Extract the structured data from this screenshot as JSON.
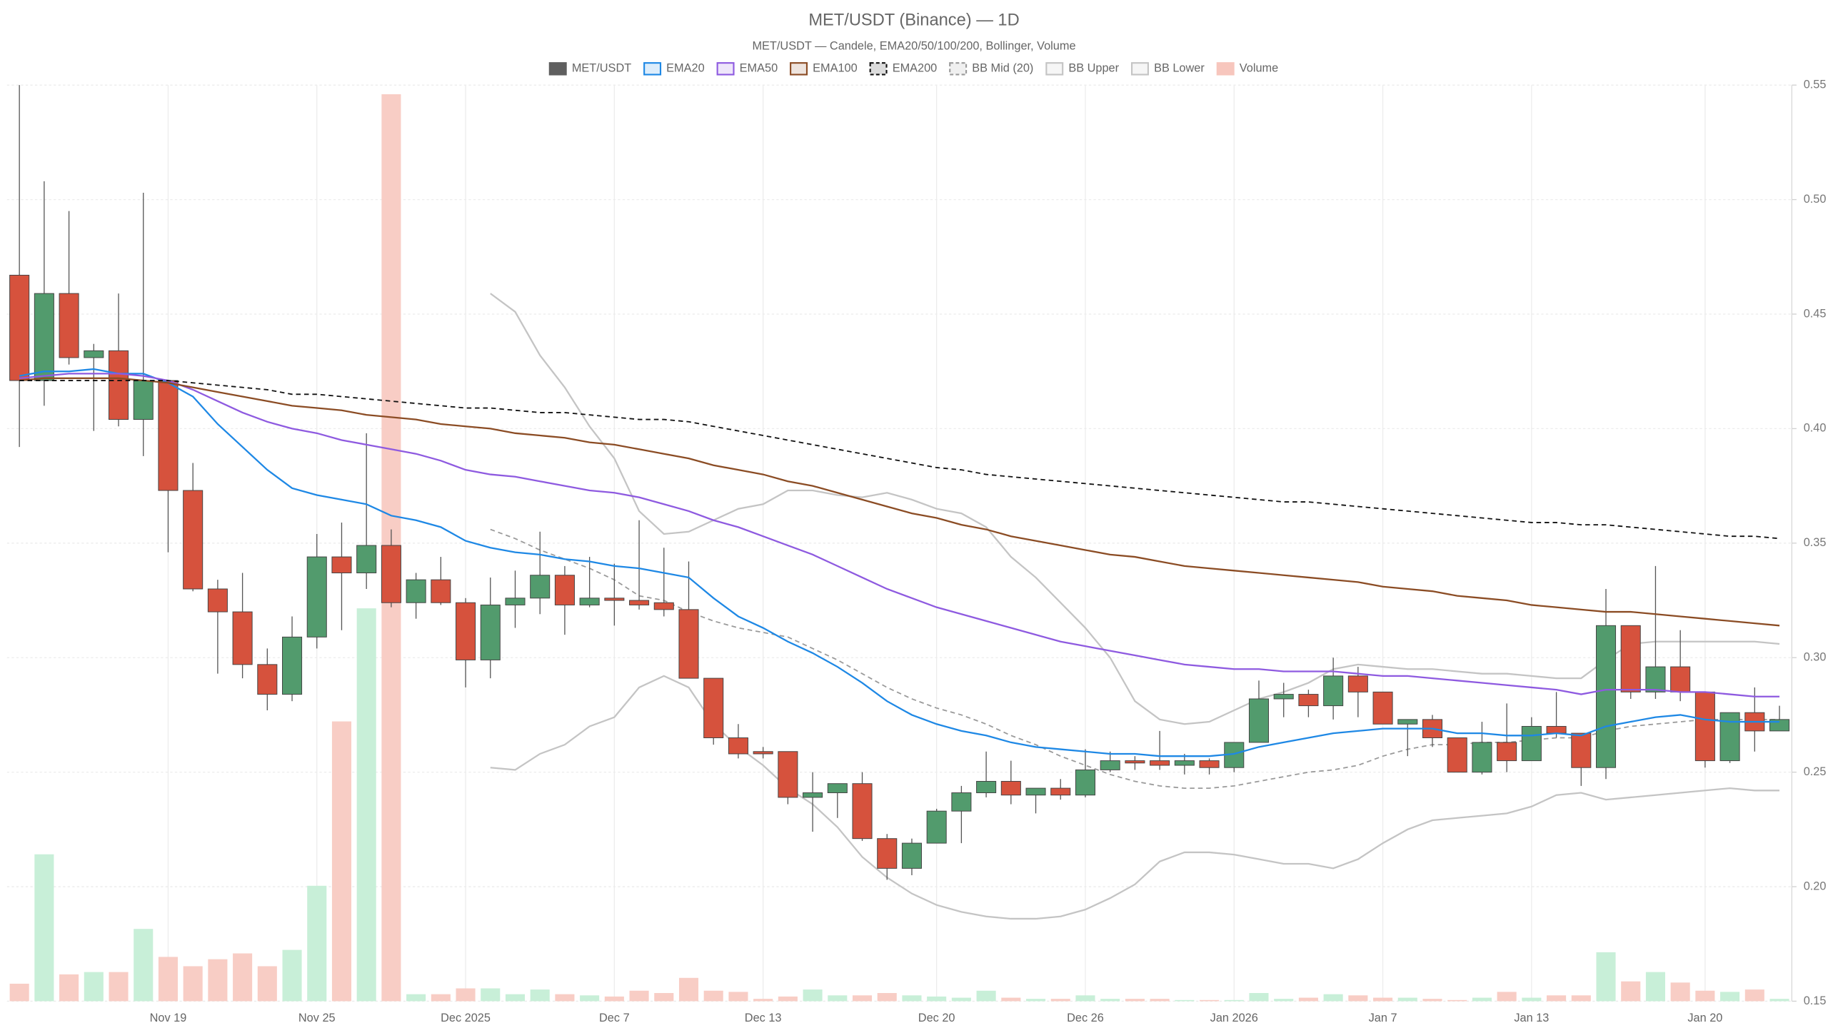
{
  "chart_data": {
    "type": "candlestick",
    "title": "MET/USDT (Binance) — 1D",
    "subtitle": "MET/USDT — Candele, EMA20/50/100/200, Bollinger, Volume",
    "x": [
      "2025-11-13",
      "2025-11-14",
      "2025-11-15",
      "2025-11-16",
      "2025-11-17",
      "2025-11-18",
      "2025-11-19",
      "2025-11-20",
      "2025-11-21",
      "2025-11-22",
      "2025-11-23",
      "2025-11-24",
      "2025-11-25",
      "2025-11-26",
      "2025-11-27",
      "2025-11-28",
      "2025-11-29",
      "2025-11-30",
      "2025-12-01",
      "2025-12-02",
      "2025-12-03",
      "2025-12-04",
      "2025-12-05",
      "2025-12-06",
      "2025-12-07",
      "2025-12-08",
      "2025-12-09",
      "2025-12-10",
      "2025-12-11",
      "2025-12-12",
      "2025-12-13",
      "2025-12-14",
      "2025-12-15",
      "2025-12-16",
      "2025-12-17",
      "2025-12-18",
      "2025-12-19",
      "2025-12-20",
      "2025-12-21",
      "2025-12-22",
      "2025-12-23",
      "2025-12-24",
      "2025-12-25",
      "2025-12-26",
      "2025-12-27",
      "2025-12-28",
      "2025-12-29",
      "2025-12-30",
      "2025-12-31",
      "2026-01-01",
      "2026-01-02",
      "2026-01-03",
      "2026-01-04",
      "2026-01-05",
      "2026-01-06",
      "2026-01-07",
      "2026-01-08",
      "2026-01-09",
      "2026-01-10",
      "2026-01-11",
      "2026-01-12",
      "2026-01-13",
      "2026-01-14",
      "2026-01-15",
      "2026-01-16",
      "2026-01-17",
      "2026-01-18",
      "2026-01-19",
      "2026-01-20",
      "2026-01-21",
      "2026-01-22",
      "2026-01-23"
    ],
    "candles": {
      "name": "MET/USDT",
      "color": "#5f5f5f",
      "up_color": "#529b6d",
      "down_color": "#d6523d",
      "open": [
        0.467,
        0.421,
        0.459,
        0.431,
        0.434,
        0.404,
        0.421,
        0.373,
        0.33,
        0.32,
        0.297,
        0.284,
        0.309,
        0.344,
        0.337,
        0.349,
        0.324,
        0.334,
        0.324,
        0.299,
        0.323,
        0.326,
        0.336,
        0.323,
        0.326,
        0.325,
        0.324,
        0.321,
        0.291,
        0.265,
        0.259,
        0.259,
        0.239,
        0.241,
        0.245,
        0.221,
        0.208,
        0.219,
        0.233,
        0.241,
        0.246,
        0.24,
        0.243,
        0.24,
        0.251,
        0.255,
        0.255,
        0.253,
        0.255,
        0.252,
        0.263,
        0.282,
        0.284,
        0.279,
        0.292,
        0.285,
        0.271,
        0.273,
        0.265,
        0.25,
        0.263,
        0.255,
        0.27,
        0.267,
        0.252,
        0.314,
        0.285,
        0.296,
        0.285,
        0.255,
        0.276,
        0.268
      ],
      "high": [
        0.55,
        0.508,
        0.495,
        0.437,
        0.459,
        0.503,
        0.421,
        0.385,
        0.334,
        0.337,
        0.304,
        0.318,
        0.354,
        0.359,
        0.398,
        0.356,
        0.337,
        0.344,
        0.326,
        0.335,
        0.338,
        0.355,
        0.34,
        0.344,
        0.341,
        0.36,
        0.348,
        0.342,
        0.291,
        0.271,
        0.261,
        0.259,
        0.25,
        0.245,
        0.25,
        0.223,
        0.221,
        0.234,
        0.244,
        0.259,
        0.255,
        0.243,
        0.247,
        0.26,
        0.259,
        0.257,
        0.268,
        0.258,
        0.256,
        0.263,
        0.29,
        0.289,
        0.286,
        0.3,
        0.296,
        0.285,
        0.273,
        0.275,
        0.265,
        0.272,
        0.28,
        0.274,
        0.285,
        0.267,
        0.33,
        0.314,
        0.34,
        0.312,
        0.285,
        0.276,
        0.287,
        0.279
      ],
      "low": [
        0.392,
        0.41,
        0.428,
        0.399,
        0.401,
        0.388,
        0.346,
        0.329,
        0.293,
        0.291,
        0.277,
        0.281,
        0.304,
        0.312,
        0.33,
        0.322,
        0.317,
        0.323,
        0.287,
        0.291,
        0.313,
        0.319,
        0.31,
        0.322,
        0.314,
        0.321,
        0.318,
        0.291,
        0.262,
        0.256,
        0.256,
        0.236,
        0.224,
        0.23,
        0.22,
        0.203,
        0.205,
        0.219,
        0.219,
        0.239,
        0.236,
        0.232,
        0.238,
        0.239,
        0.25,
        0.251,
        0.251,
        0.249,
        0.249,
        0.25,
        0.263,
        0.274,
        0.274,
        0.273,
        0.274,
        0.271,
        0.257,
        0.261,
        0.25,
        0.249,
        0.25,
        0.255,
        0.265,
        0.244,
        0.247,
        0.282,
        0.282,
        0.281,
        0.252,
        0.254,
        0.259,
        0.268
      ],
      "close": [
        0.421,
        0.459,
        0.431,
        0.434,
        0.404,
        0.421,
        0.373,
        0.33,
        0.32,
        0.297,
        0.284,
        0.309,
        0.344,
        0.337,
        0.349,
        0.324,
        0.334,
        0.324,
        0.299,
        0.323,
        0.326,
        0.336,
        0.323,
        0.326,
        0.325,
        0.323,
        0.321,
        0.291,
        0.265,
        0.258,
        0.258,
        0.239,
        0.241,
        0.245,
        0.221,
        0.208,
        0.219,
        0.233,
        0.241,
        0.246,
        0.24,
        0.243,
        0.24,
        0.251,
        0.255,
        0.254,
        0.253,
        0.255,
        0.252,
        0.263,
        0.282,
        0.284,
        0.279,
        0.292,
        0.285,
        0.271,
        0.273,
        0.265,
        0.25,
        0.263,
        0.255,
        0.27,
        0.267,
        0.252,
        0.314,
        0.285,
        0.296,
        0.285,
        0.255,
        0.276,
        0.268,
        0.273
      ]
    },
    "series": [
      {
        "name": "EMA20",
        "color": "#1e88e5",
        "values": [
          0.423,
          0.425,
          0.425,
          0.426,
          0.424,
          0.424,
          0.42,
          0.414,
          0.402,
          0.392,
          0.382,
          0.374,
          0.371,
          0.369,
          0.367,
          0.362,
          0.36,
          0.357,
          0.351,
          0.348,
          0.346,
          0.345,
          0.343,
          0.342,
          0.34,
          0.339,
          0.337,
          0.335,
          0.326,
          0.318,
          0.313,
          0.307,
          0.302,
          0.296,
          0.289,
          0.281,
          0.275,
          0.271,
          0.268,
          0.266,
          0.263,
          0.261,
          0.26,
          0.259,
          0.258,
          0.258,
          0.257,
          0.257,
          0.257,
          0.258,
          0.261,
          0.263,
          0.265,
          0.267,
          0.268,
          0.269,
          0.269,
          0.269,
          0.267,
          0.267,
          0.266,
          0.266,
          0.267,
          0.266,
          0.27,
          0.272,
          0.274,
          0.275,
          0.273,
          0.272,
          0.272,
          0.272
        ]
      },
      {
        "name": "EMA50",
        "color": "#8e5ae0",
        "values": [
          0.422,
          0.423,
          0.424,
          0.424,
          0.424,
          0.423,
          0.421,
          0.417,
          0.412,
          0.407,
          0.403,
          0.4,
          0.398,
          0.395,
          0.393,
          0.391,
          0.389,
          0.386,
          0.382,
          0.38,
          0.379,
          0.377,
          0.375,
          0.373,
          0.372,
          0.37,
          0.367,
          0.364,
          0.36,
          0.357,
          0.353,
          0.349,
          0.345,
          0.34,
          0.335,
          0.33,
          0.326,
          0.322,
          0.319,
          0.316,
          0.313,
          0.31,
          0.307,
          0.305,
          0.303,
          0.301,
          0.299,
          0.297,
          0.296,
          0.295,
          0.295,
          0.294,
          0.294,
          0.294,
          0.293,
          0.292,
          0.292,
          0.291,
          0.29,
          0.289,
          0.288,
          0.287,
          0.286,
          0.284,
          0.286,
          0.286,
          0.286,
          0.285,
          0.285,
          0.284,
          0.283,
          0.283
        ]
      },
      {
        "name": "EMA100",
        "color": "#8b4c24",
        "values": [
          0.421,
          0.422,
          0.422,
          0.422,
          0.422,
          0.421,
          0.42,
          0.418,
          0.416,
          0.414,
          0.412,
          0.41,
          0.409,
          0.408,
          0.406,
          0.405,
          0.404,
          0.402,
          0.401,
          0.4,
          0.398,
          0.397,
          0.396,
          0.394,
          0.393,
          0.391,
          0.389,
          0.387,
          0.384,
          0.382,
          0.38,
          0.377,
          0.375,
          0.372,
          0.369,
          0.366,
          0.363,
          0.361,
          0.358,
          0.356,
          0.353,
          0.351,
          0.349,
          0.347,
          0.345,
          0.344,
          0.342,
          0.34,
          0.339,
          0.338,
          0.337,
          0.336,
          0.335,
          0.334,
          0.333,
          0.331,
          0.33,
          0.329,
          0.327,
          0.326,
          0.325,
          0.323,
          0.322,
          0.321,
          0.32,
          0.32,
          0.319,
          0.318,
          0.317,
          0.316,
          0.315,
          0.314
        ]
      },
      {
        "name": "EMA200",
        "color": "#111111",
        "dashed": true,
        "values": [
          0.421,
          0.421,
          0.421,
          0.421,
          0.421,
          0.421,
          0.421,
          0.42,
          0.419,
          0.418,
          0.417,
          0.415,
          0.415,
          0.414,
          0.413,
          0.412,
          0.411,
          0.41,
          0.409,
          0.409,
          0.408,
          0.407,
          0.407,
          0.406,
          0.405,
          0.404,
          0.404,
          0.403,
          0.401,
          0.399,
          0.397,
          0.395,
          0.393,
          0.391,
          0.389,
          0.387,
          0.385,
          0.383,
          0.382,
          0.38,
          0.379,
          0.378,
          0.377,
          0.376,
          0.375,
          0.374,
          0.373,
          0.372,
          0.371,
          0.37,
          0.369,
          0.368,
          0.368,
          0.367,
          0.366,
          0.365,
          0.364,
          0.363,
          0.362,
          0.361,
          0.36,
          0.359,
          0.359,
          0.358,
          0.358,
          0.357,
          0.356,
          0.355,
          0.354,
          0.353,
          0.353,
          0.352
        ]
      },
      {
        "name": "BB Mid (20)",
        "color": "#9a9a9a",
        "dashed": true,
        "values": [
          null,
          null,
          null,
          null,
          null,
          null,
          null,
          null,
          null,
          null,
          null,
          null,
          null,
          null,
          null,
          null,
          null,
          null,
          null,
          0.356,
          0.352,
          0.347,
          0.343,
          0.339,
          0.334,
          0.327,
          0.325,
          0.32,
          0.316,
          0.313,
          0.311,
          0.309,
          0.304,
          0.299,
          0.293,
          0.287,
          0.282,
          0.278,
          0.275,
          0.271,
          0.266,
          0.262,
          0.257,
          0.253,
          0.249,
          0.246,
          0.244,
          0.243,
          0.243,
          0.244,
          0.246,
          0.248,
          0.25,
          0.251,
          0.253,
          0.257,
          0.26,
          0.262,
          0.262,
          0.263,
          0.263,
          0.264,
          0.265,
          0.265,
          0.268,
          0.27,
          0.271,
          0.272,
          0.273,
          0.273,
          0.273,
          0.273
        ]
      },
      {
        "name": "BB Upper",
        "color": "#c4c4c4",
        "values": [
          null,
          null,
          null,
          null,
          null,
          null,
          null,
          null,
          null,
          null,
          null,
          null,
          null,
          null,
          null,
          null,
          null,
          null,
          null,
          0.459,
          0.451,
          0.432,
          0.418,
          0.401,
          0.387,
          0.364,
          0.354,
          0.355,
          0.36,
          0.365,
          0.367,
          0.373,
          0.373,
          0.371,
          0.37,
          0.372,
          0.369,
          0.365,
          0.363,
          0.357,
          0.344,
          0.335,
          0.324,
          0.313,
          0.3,
          0.281,
          0.273,
          0.271,
          0.272,
          0.277,
          0.282,
          0.285,
          0.289,
          0.295,
          0.297,
          0.296,
          0.295,
          0.295,
          0.294,
          0.293,
          0.293,
          0.292,
          0.291,
          0.291,
          0.299,
          0.306,
          0.307,
          0.307,
          0.307,
          0.307,
          0.307,
          0.306
        ]
      },
      {
        "name": "BB Lower",
        "color": "#c4c4c4",
        "values": [
          null,
          null,
          null,
          null,
          null,
          null,
          null,
          null,
          null,
          null,
          null,
          null,
          null,
          null,
          null,
          null,
          null,
          null,
          null,
          0.252,
          0.251,
          0.258,
          0.262,
          0.27,
          0.274,
          0.287,
          0.292,
          0.287,
          0.271,
          0.261,
          0.253,
          0.243,
          0.236,
          0.226,
          0.213,
          0.204,
          0.197,
          0.192,
          0.189,
          0.187,
          0.186,
          0.186,
          0.187,
          0.19,
          0.195,
          0.201,
          0.211,
          0.215,
          0.215,
          0.214,
          0.212,
          0.21,
          0.21,
          0.208,
          0.212,
          0.219,
          0.225,
          0.229,
          0.23,
          0.231,
          0.232,
          0.235,
          0.24,
          0.241,
          0.238,
          0.239,
          0.24,
          0.241,
          0.242,
          0.243,
          0.242,
          0.242
        ]
      }
    ],
    "volume": {
      "name": "Volume",
      "color": "#f7c6bd",
      "up_color": "#c8efd8",
      "down_color": "#f8cdc5",
      "values": [
        15,
        126,
        23,
        25,
        25,
        62,
        38,
        30,
        36,
        41,
        30,
        44,
        99,
        240,
        337,
        778,
        6,
        6,
        11,
        11,
        6,
        10,
        6,
        5,
        4,
        9,
        7,
        20,
        9,
        8,
        2,
        4,
        10,
        5,
        5,
        7,
        5,
        4,
        3,
        9,
        3,
        2,
        2,
        5,
        2,
        2,
        2,
        1,
        1,
        1,
        7,
        2,
        3,
        6,
        5,
        3,
        3,
        2,
        1,
        3,
        8,
        3,
        5,
        5,
        42,
        17,
        25,
        16,
        9,
        8,
        10,
        2
      ]
    },
    "ylim": [
      0.15,
      0.55
    ],
    "yticks": [
      0.15,
      {
        "value": 0.2,
        "label": "0.20"
      },
      0.25,
      {
        "value": 0.3,
        "label": "0.30"
      },
      0.35,
      {
        "value": 0.4,
        "label": "0.40"
      },
      0.45,
      {
        "value": 0.5,
        "label": "0.50"
      },
      0.55
    ],
    "xticks": [
      {
        "value": "2025-11-19",
        "label": "Nov 19"
      },
      {
        "value": "2025-11-25",
        "label": "Nov 25"
      },
      {
        "value": "2025-12-01",
        "label": "Dec 2025"
      },
      {
        "value": "2025-12-07",
        "label": "Dec 7"
      },
      {
        "value": "2025-12-13",
        "label": "Dec 13"
      },
      {
        "value": "2025-12-20",
        "label": "Dec 20"
      },
      {
        "value": "2025-12-26",
        "label": "Dec 26"
      },
      {
        "value": "2026-01-01",
        "label": "Jan 2026"
      },
      {
        "value": "2026-01-07",
        "label": "Jan 7"
      },
      {
        "value": "2026-01-13",
        "label": "Jan 13"
      },
      {
        "value": "2026-01-20",
        "label": "Jan 20"
      }
    ],
    "grid": true,
    "legend": "top"
  }
}
